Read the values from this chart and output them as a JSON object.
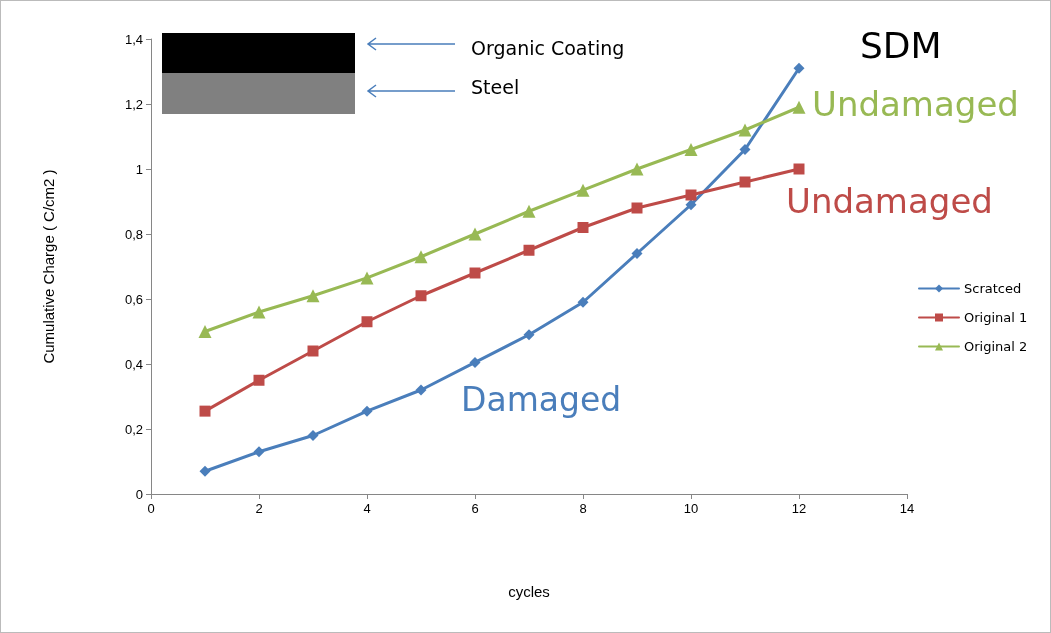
{
  "chart_data": {
    "type": "line",
    "xlabel": "cycles",
    "ylabel": "Cumulative Charge ( C/cm2 )",
    "x": [
      1,
      2,
      3,
      4,
      5,
      6,
      7,
      8,
      9,
      10,
      11,
      12
    ],
    "series": [
      {
        "name": "Scratced",
        "color": "#4a7ebb",
        "marker": "diamond",
        "values": [
          0.07,
          0.13,
          0.18,
          0.255,
          0.32,
          0.405,
          0.49,
          0.59,
          0.74,
          0.89,
          1.06,
          1.31
        ]
      },
      {
        "name": "Original 1",
        "color": "#be4b48",
        "marker": "square",
        "values": [
          0.255,
          0.35,
          0.44,
          0.53,
          0.61,
          0.68,
          0.75,
          0.82,
          0.88,
          0.92,
          0.96,
          1.0
        ]
      },
      {
        "name": "Original 2",
        "color": "#98b954",
        "marker": "triangle",
        "values": [
          0.5,
          0.56,
          0.61,
          0.665,
          0.73,
          0.8,
          0.87,
          0.935,
          1.0,
          1.06,
          1.12,
          1.19
        ]
      }
    ],
    "xlim": [
      0,
      14
    ],
    "xticks": [
      0,
      2,
      4,
      6,
      8,
      10,
      12,
      14
    ],
    "ylim": [
      0,
      1.4
    ],
    "yticks": [
      0,
      {
        "value": 0.2,
        "label": "0,2"
      },
      {
        "value": 0.4,
        "label": "0,4"
      },
      {
        "value": 0.6,
        "label": "0,6"
      },
      {
        "value": 0.8,
        "label": "0,8"
      },
      1,
      {
        "value": 1.2,
        "label": "1,2"
      },
      {
        "value": 1.4,
        "label": "1,4"
      }
    ],
    "grid": false,
    "legend": "right",
    "line_style": "solid",
    "annotations": [
      "Organic Coating",
      "Steel",
      "SDM",
      "Undamaged",
      "Undamaged",
      "Damaged"
    ]
  }
}
